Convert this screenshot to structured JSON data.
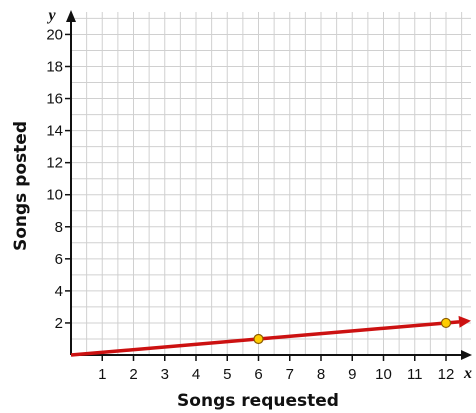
{
  "chart_data": {
    "type": "line",
    "xlabel": "Songs requested",
    "ylabel": "Songs posted",
    "x_axis_letter": "x",
    "y_axis_letter": "y",
    "xlim": [
      0,
      12.8
    ],
    "ylim": [
      0,
      21.4
    ],
    "x_ticks": [
      1,
      2,
      3,
      4,
      5,
      6,
      7,
      8,
      9,
      10,
      11,
      12
    ],
    "y_ticks": [
      2,
      4,
      6,
      8,
      10,
      12,
      14,
      16,
      18,
      20
    ],
    "grid": true,
    "series": [
      {
        "line": {
          "x": [
            0,
            12.8
          ],
          "y": [
            0,
            2.133
          ]
        },
        "points": [
          {
            "x": 6,
            "y": 1
          },
          {
            "x": 12,
            "y": 2
          }
        ]
      }
    ],
    "colors": {
      "line": "#cc1111",
      "point_fill": "#ffcc00",
      "point_stroke": "#8a5a00",
      "grid": "#d0d0d0",
      "axis": "#111111"
    }
  }
}
